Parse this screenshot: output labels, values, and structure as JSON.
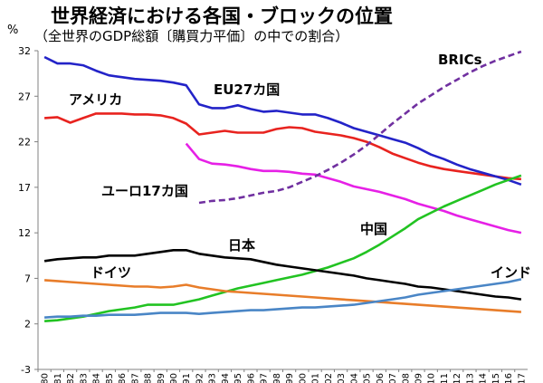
{
  "title": "世界経済における各国・ブロックの位置",
  "subtitle": "（全世界のGDP総額〔購買力平価〕の中での割合）",
  "unit": "%",
  "chart_data": {
    "type": "line",
    "title": "世界経済における各国・ブロックの位置",
    "subtitle": "（全世界のGDP総額〔購買力平価〕の中での割合）",
    "ylabel": "%",
    "ylim": [
      -3,
      32
    ],
    "yticks": [
      -3,
      2,
      7,
      12,
      17,
      22,
      27,
      32
    ],
    "x": [
      1980,
      1981,
      1982,
      1983,
      1984,
      1985,
      1986,
      1987,
      1988,
      1989,
      1990,
      1991,
      1992,
      1993,
      1994,
      1995,
      1996,
      1997,
      1998,
      1999,
      2000,
      2001,
      2002,
      2003,
      2004,
      2005,
      2006,
      2007,
      2008,
      2009,
      2010,
      2011,
      2012,
      2013,
      2014,
      2015,
      2016,
      2017
    ],
    "grid": false,
    "legend": "inline labels",
    "series": [
      {
        "name": "アメリカ",
        "color": "#e8231f",
        "style": "solid",
        "values": [
          24.6,
          24.7,
          24.1,
          24.6,
          25.1,
          25.1,
          25.1,
          25.0,
          25.0,
          24.9,
          24.6,
          24.0,
          22.8,
          23.0,
          23.2,
          23.0,
          23.0,
          23.0,
          23.4,
          23.6,
          23.5,
          23.1,
          22.9,
          22.7,
          22.4,
          22.0,
          21.4,
          20.7,
          20.2,
          19.7,
          19.3,
          19.0,
          18.8,
          18.6,
          18.4,
          18.2,
          18.0,
          17.9
        ]
      },
      {
        "name": "EU27カ国",
        "color": "#2323c8",
        "style": "solid",
        "values": [
          31.3,
          30.6,
          30.6,
          30.4,
          29.8,
          29.3,
          29.1,
          28.9,
          28.8,
          28.7,
          28.5,
          28.2,
          26.1,
          25.7,
          25.7,
          26.0,
          25.6,
          25.3,
          25.4,
          25.2,
          25.0,
          25.0,
          24.6,
          24.1,
          23.5,
          23.1,
          22.7,
          22.3,
          21.9,
          21.3,
          20.6,
          20.1,
          19.5,
          19.0,
          18.6,
          18.2,
          17.8,
          17.3
        ]
      },
      {
        "name": "ユーロ17カ国",
        "color": "#e620e6",
        "style": "solid",
        "values": [
          null,
          null,
          null,
          null,
          null,
          null,
          null,
          null,
          null,
          null,
          null,
          21.8,
          20.1,
          19.6,
          19.5,
          19.3,
          19.0,
          18.8,
          18.8,
          18.7,
          18.5,
          18.4,
          18.0,
          17.6,
          17.1,
          16.8,
          16.5,
          16.1,
          15.7,
          15.2,
          14.8,
          14.4,
          13.9,
          13.5,
          13.1,
          12.7,
          12.3,
          12.0
        ]
      },
      {
        "name": "BRICs",
        "color": "#7030a0",
        "style": "dashed",
        "values": [
          null,
          null,
          null,
          null,
          null,
          null,
          null,
          null,
          null,
          null,
          null,
          null,
          15.3,
          15.5,
          15.6,
          15.8,
          16.1,
          16.4,
          16.6,
          17.0,
          17.6,
          18.2,
          18.9,
          19.7,
          20.6,
          21.6,
          22.8,
          24.0,
          25.1,
          26.2,
          27.1,
          28.0,
          28.8,
          29.6,
          30.3,
          30.9,
          31.4,
          31.9
        ]
      },
      {
        "name": "中国",
        "color": "#22c322",
        "style": "solid",
        "values": [
          2.3,
          2.4,
          2.6,
          2.8,
          3.1,
          3.4,
          3.6,
          3.8,
          4.1,
          4.1,
          4.1,
          4.4,
          4.7,
          5.1,
          5.5,
          5.9,
          6.2,
          6.5,
          6.8,
          7.1,
          7.4,
          7.8,
          8.2,
          8.7,
          9.2,
          9.9,
          10.7,
          11.6,
          12.5,
          13.5,
          14.2,
          14.9,
          15.5,
          16.1,
          16.7,
          17.3,
          17.8,
          18.3
        ]
      },
      {
        "name": "日本",
        "color": "#000000",
        "style": "solid",
        "values": [
          8.9,
          9.1,
          9.2,
          9.3,
          9.3,
          9.5,
          9.5,
          9.5,
          9.7,
          9.9,
          10.1,
          10.1,
          9.7,
          9.5,
          9.3,
          9.2,
          9.1,
          8.8,
          8.5,
          8.3,
          8.1,
          7.9,
          7.7,
          7.5,
          7.3,
          7.0,
          6.8,
          6.6,
          6.4,
          6.1,
          6.0,
          5.8,
          5.6,
          5.4,
          5.2,
          5.0,
          4.9,
          4.7
        ]
      },
      {
        "name": "ドイツ",
        "color": "#e87d2a",
        "style": "solid",
        "values": [
          6.8,
          6.7,
          6.6,
          6.5,
          6.4,
          6.3,
          6.2,
          6.1,
          6.1,
          6.0,
          6.1,
          6.3,
          6.0,
          5.8,
          5.6,
          5.5,
          5.4,
          5.3,
          5.2,
          5.1,
          5.0,
          4.9,
          4.8,
          4.7,
          4.6,
          4.5,
          4.4,
          4.3,
          4.2,
          4.1,
          4.0,
          3.9,
          3.8,
          3.7,
          3.6,
          3.5,
          3.4,
          3.3
        ]
      },
      {
        "name": "インド",
        "color": "#4a86c6",
        "style": "solid",
        "values": [
          2.7,
          2.8,
          2.8,
          2.9,
          2.9,
          3.0,
          3.0,
          3.0,
          3.1,
          3.2,
          3.2,
          3.2,
          3.1,
          3.2,
          3.3,
          3.4,
          3.5,
          3.5,
          3.6,
          3.7,
          3.8,
          3.8,
          3.9,
          4.0,
          4.1,
          4.3,
          4.5,
          4.7,
          4.9,
          5.2,
          5.4,
          5.6,
          5.8,
          6.0,
          6.2,
          6.4,
          6.6,
          6.9
        ]
      }
    ]
  }
}
